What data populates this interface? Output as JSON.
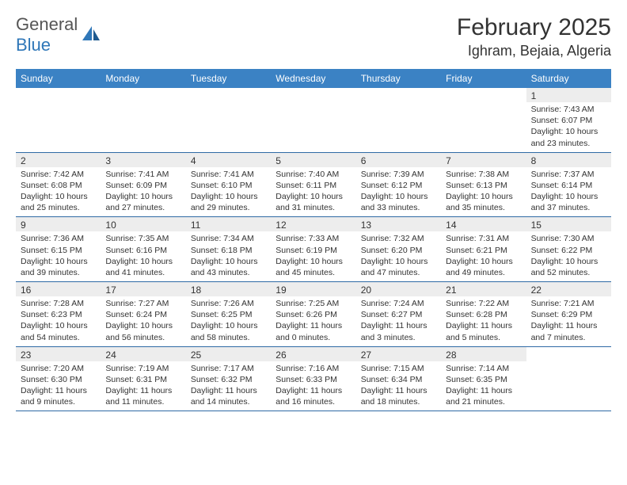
{
  "logo": {
    "text1": "General",
    "text2": "Blue"
  },
  "title": "February 2025",
  "location": "Ighram, Bejaia, Algeria",
  "colors": {
    "header_bg": "#3b82c4",
    "header_text": "#ffffff",
    "daynum_bg": "#ededed",
    "border": "#2f6aa5",
    "logo_blue": "#2f77b8",
    "text": "#333333"
  },
  "weekdays": [
    "Sunday",
    "Monday",
    "Tuesday",
    "Wednesday",
    "Thursday",
    "Friday",
    "Saturday"
  ],
  "weeks": [
    [
      {
        "num": "",
        "lines": [
          "",
          "",
          "",
          ""
        ],
        "blank": true
      },
      {
        "num": "",
        "lines": [
          "",
          "",
          "",
          ""
        ],
        "blank": true
      },
      {
        "num": "",
        "lines": [
          "",
          "",
          "",
          ""
        ],
        "blank": true
      },
      {
        "num": "",
        "lines": [
          "",
          "",
          "",
          ""
        ],
        "blank": true
      },
      {
        "num": "",
        "lines": [
          "",
          "",
          "",
          ""
        ],
        "blank": true
      },
      {
        "num": "",
        "lines": [
          "",
          "",
          "",
          ""
        ],
        "blank": true
      },
      {
        "num": "1",
        "lines": [
          "Sunrise: 7:43 AM",
          "Sunset: 6:07 PM",
          "Daylight: 10 hours",
          "and 23 minutes."
        ]
      }
    ],
    [
      {
        "num": "2",
        "lines": [
          "Sunrise: 7:42 AM",
          "Sunset: 6:08 PM",
          "Daylight: 10 hours",
          "and 25 minutes."
        ]
      },
      {
        "num": "3",
        "lines": [
          "Sunrise: 7:41 AM",
          "Sunset: 6:09 PM",
          "Daylight: 10 hours",
          "and 27 minutes."
        ]
      },
      {
        "num": "4",
        "lines": [
          "Sunrise: 7:41 AM",
          "Sunset: 6:10 PM",
          "Daylight: 10 hours",
          "and 29 minutes."
        ]
      },
      {
        "num": "5",
        "lines": [
          "Sunrise: 7:40 AM",
          "Sunset: 6:11 PM",
          "Daylight: 10 hours",
          "and 31 minutes."
        ]
      },
      {
        "num": "6",
        "lines": [
          "Sunrise: 7:39 AM",
          "Sunset: 6:12 PM",
          "Daylight: 10 hours",
          "and 33 minutes."
        ]
      },
      {
        "num": "7",
        "lines": [
          "Sunrise: 7:38 AM",
          "Sunset: 6:13 PM",
          "Daylight: 10 hours",
          "and 35 minutes."
        ]
      },
      {
        "num": "8",
        "lines": [
          "Sunrise: 7:37 AM",
          "Sunset: 6:14 PM",
          "Daylight: 10 hours",
          "and 37 minutes."
        ]
      }
    ],
    [
      {
        "num": "9",
        "lines": [
          "Sunrise: 7:36 AM",
          "Sunset: 6:15 PM",
          "Daylight: 10 hours",
          "and 39 minutes."
        ]
      },
      {
        "num": "10",
        "lines": [
          "Sunrise: 7:35 AM",
          "Sunset: 6:16 PM",
          "Daylight: 10 hours",
          "and 41 minutes."
        ]
      },
      {
        "num": "11",
        "lines": [
          "Sunrise: 7:34 AM",
          "Sunset: 6:18 PM",
          "Daylight: 10 hours",
          "and 43 minutes."
        ]
      },
      {
        "num": "12",
        "lines": [
          "Sunrise: 7:33 AM",
          "Sunset: 6:19 PM",
          "Daylight: 10 hours",
          "and 45 minutes."
        ]
      },
      {
        "num": "13",
        "lines": [
          "Sunrise: 7:32 AM",
          "Sunset: 6:20 PM",
          "Daylight: 10 hours",
          "and 47 minutes."
        ]
      },
      {
        "num": "14",
        "lines": [
          "Sunrise: 7:31 AM",
          "Sunset: 6:21 PM",
          "Daylight: 10 hours",
          "and 49 minutes."
        ]
      },
      {
        "num": "15",
        "lines": [
          "Sunrise: 7:30 AM",
          "Sunset: 6:22 PM",
          "Daylight: 10 hours",
          "and 52 minutes."
        ]
      }
    ],
    [
      {
        "num": "16",
        "lines": [
          "Sunrise: 7:28 AM",
          "Sunset: 6:23 PM",
          "Daylight: 10 hours",
          "and 54 minutes."
        ]
      },
      {
        "num": "17",
        "lines": [
          "Sunrise: 7:27 AM",
          "Sunset: 6:24 PM",
          "Daylight: 10 hours",
          "and 56 minutes."
        ]
      },
      {
        "num": "18",
        "lines": [
          "Sunrise: 7:26 AM",
          "Sunset: 6:25 PM",
          "Daylight: 10 hours",
          "and 58 minutes."
        ]
      },
      {
        "num": "19",
        "lines": [
          "Sunrise: 7:25 AM",
          "Sunset: 6:26 PM",
          "Daylight: 11 hours",
          "and 0 minutes."
        ]
      },
      {
        "num": "20",
        "lines": [
          "Sunrise: 7:24 AM",
          "Sunset: 6:27 PM",
          "Daylight: 11 hours",
          "and 3 minutes."
        ]
      },
      {
        "num": "21",
        "lines": [
          "Sunrise: 7:22 AM",
          "Sunset: 6:28 PM",
          "Daylight: 11 hours",
          "and 5 minutes."
        ]
      },
      {
        "num": "22",
        "lines": [
          "Sunrise: 7:21 AM",
          "Sunset: 6:29 PM",
          "Daylight: 11 hours",
          "and 7 minutes."
        ]
      }
    ],
    [
      {
        "num": "23",
        "lines": [
          "Sunrise: 7:20 AM",
          "Sunset: 6:30 PM",
          "Daylight: 11 hours",
          "and 9 minutes."
        ]
      },
      {
        "num": "24",
        "lines": [
          "Sunrise: 7:19 AM",
          "Sunset: 6:31 PM",
          "Daylight: 11 hours",
          "and 11 minutes."
        ]
      },
      {
        "num": "25",
        "lines": [
          "Sunrise: 7:17 AM",
          "Sunset: 6:32 PM",
          "Daylight: 11 hours",
          "and 14 minutes."
        ]
      },
      {
        "num": "26",
        "lines": [
          "Sunrise: 7:16 AM",
          "Sunset: 6:33 PM",
          "Daylight: 11 hours",
          "and 16 minutes."
        ]
      },
      {
        "num": "27",
        "lines": [
          "Sunrise: 7:15 AM",
          "Sunset: 6:34 PM",
          "Daylight: 11 hours",
          "and 18 minutes."
        ]
      },
      {
        "num": "28",
        "lines": [
          "Sunrise: 7:14 AM",
          "Sunset: 6:35 PM",
          "Daylight: 11 hours",
          "and 21 minutes."
        ]
      },
      {
        "num": "",
        "lines": [
          "",
          "",
          "",
          ""
        ],
        "blank": true
      }
    ]
  ]
}
